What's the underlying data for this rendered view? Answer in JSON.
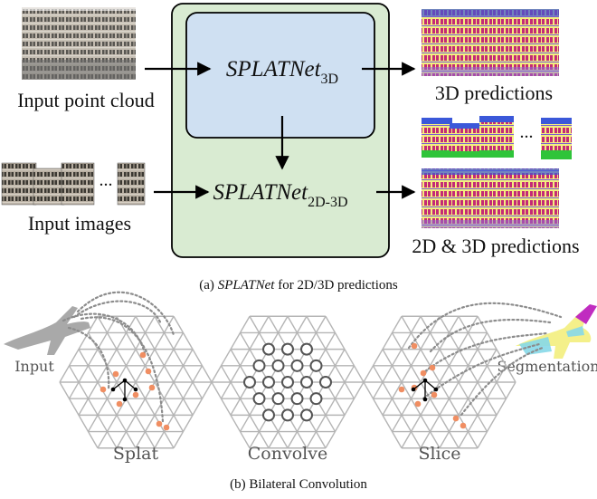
{
  "part_a": {
    "input_point_cloud": "Input point cloud",
    "input_images": "Input images",
    "net_3d_name": "SPLATNet",
    "net_3d_sub": "3D",
    "net_2d3d_name": "SPLATNet",
    "net_2d3d_sub": "2D-3D",
    "pred_3d": "3D predictions",
    "pred_2d3d": "2D & 3D predictions",
    "ellipsis_images": "...",
    "ellipsis_preds": "...",
    "caption_prefix": "(a) ",
    "caption_italic": "SPLATNet",
    "caption_rest": " for 2D/3D predictions"
  },
  "part_b": {
    "input_label": "Input",
    "segmentation_label": "Segmentation",
    "splat_label": "Splat",
    "convolve_label": "Convolve",
    "slice_label": "Slice",
    "caption": "(b) Bilateral Convolution"
  },
  "colors": {
    "outer_box": "#d9ebd2",
    "inner_box": "#cfe0f2",
    "seg_yellow": "#f4f08a",
    "seg_magenta": "#e0307f",
    "seg_green": "#2fc43a",
    "seg_blue": "#3b58d9",
    "splat_dot": "#f08e62"
  }
}
